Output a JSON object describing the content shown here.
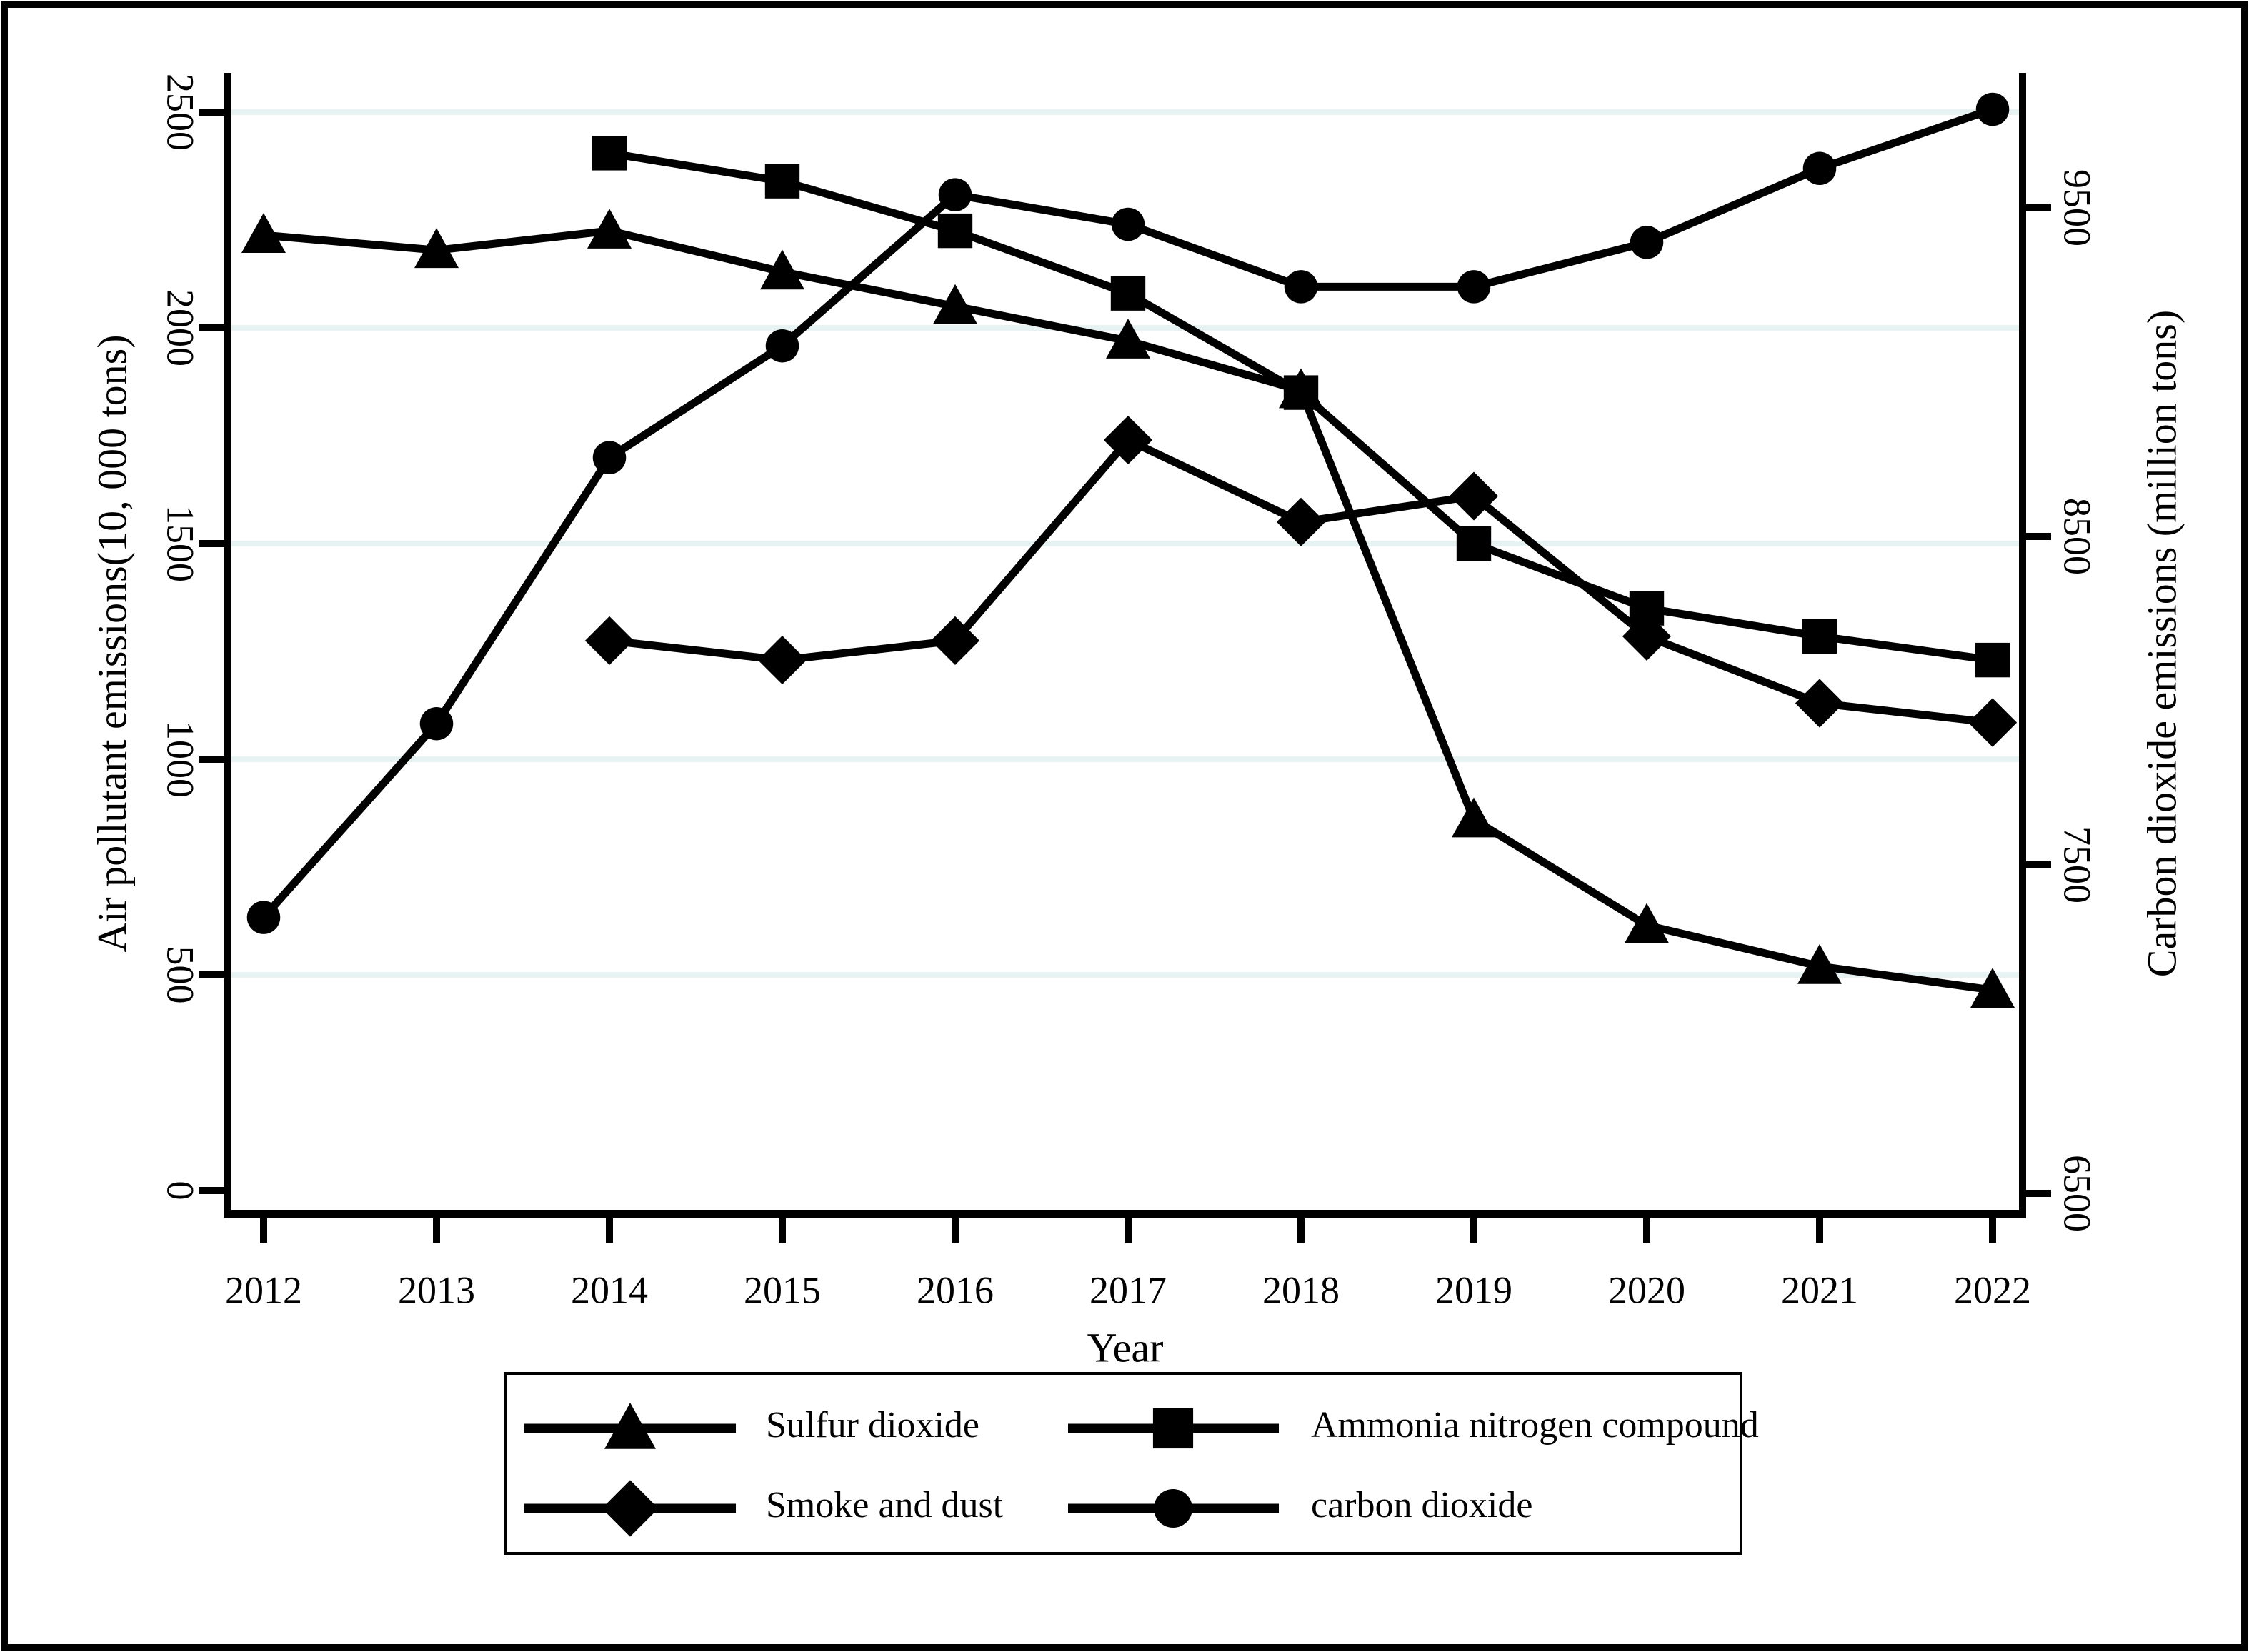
{
  "figure": {
    "background": "#ffffff",
    "border_color": "#000000",
    "series_color": "#000000",
    "gridline_color": "#e7f3f2"
  },
  "chart_data": {
    "type": "line",
    "x": [
      2012,
      2013,
      2014,
      2015,
      2016,
      2017,
      2018,
      2019,
      2020,
      2021,
      2022
    ],
    "xlabel": "Year",
    "grid": "horizontal-left-ticks-only",
    "legend_position": "bottom-boxed",
    "left_axis": {
      "title": "Air pollutant emissions(10, 000 tons)",
      "ticks": [
        0,
        500,
        1000,
        1500,
        2000,
        2500
      ],
      "range": [
        0,
        2650
      ]
    },
    "right_axis": {
      "title": "Carbon dioxide emissions (million tons)",
      "ticks": [
        6500,
        7500,
        8500,
        9500
      ],
      "range": [
        6380,
        9905
      ]
    },
    "series": [
      {
        "name": "Sulfur dioxide",
        "marker": "triangle",
        "axis": "left",
        "values": [
          2215,
          2180,
          2225,
          2130,
          2050,
          1970,
          1855,
          860,
          615,
          520,
          465
        ]
      },
      {
        "name": "Ammonia nitrogen compound",
        "marker": "square",
        "axis": "left",
        "values": [
          null,
          null,
          2405,
          2340,
          2225,
          2080,
          1850,
          1500,
          1350,
          1285,
          1230
        ]
      },
      {
        "name": "Smoke and dust",
        "marker": "diamond",
        "axis": "left",
        "values": [
          null,
          null,
          1275,
          1230,
          1275,
          1740,
          1550,
          1610,
          1285,
          1130,
          1085
        ]
      },
      {
        "name": "carbon dioxide",
        "marker": "circle",
        "axis": "right",
        "values": [
          7340,
          7930,
          8740,
          9080,
          9540,
          9450,
          9260,
          9260,
          9395,
          9620,
          9800
        ]
      }
    ]
  },
  "legend": {
    "entries": [
      {
        "label": "Sulfur dioxide",
        "marker": "triangle"
      },
      {
        "label": "Ammonia nitrogen compound",
        "marker": "square"
      },
      {
        "label": "Smoke and dust",
        "marker": "diamond"
      },
      {
        "label": "carbon dioxide",
        "marker": "circle"
      }
    ]
  }
}
